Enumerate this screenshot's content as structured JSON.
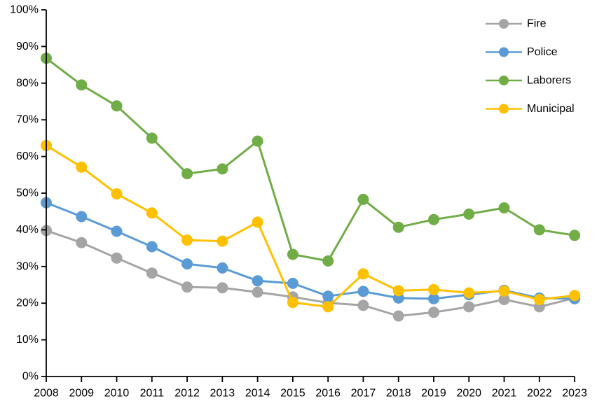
{
  "chart_data": {
    "type": "line",
    "title": "",
    "xlabel": "",
    "ylabel": "",
    "x": [
      2008,
      2009,
      2010,
      2011,
      2012,
      2013,
      2014,
      2015,
      2016,
      2017,
      2018,
      2019,
      2020,
      2021,
      2022,
      2023
    ],
    "xticks": [
      "2008",
      "2009",
      "2010",
      "2011",
      "2012",
      "2013",
      "2014",
      "2015",
      "2016",
      "2017",
      "2018",
      "2019",
      "2020",
      "2021",
      "2022",
      "2023"
    ],
    "yticks": [
      "0%",
      "10%",
      "20%",
      "30%",
      "40%",
      "50%",
      "60%",
      "70%",
      "80%",
      "90%",
      "100%"
    ],
    "ylim": [
      0,
      100
    ],
    "ytick_step": 10,
    "grid": false,
    "legend_position": "top-right",
    "background_color": "#FFFFFF",
    "axis_color": "#000000",
    "text_color": "#000000",
    "series": [
      {
        "name": "Fire",
        "color": "#A5A5A5",
        "values": [
          39.8,
          36.5,
          32.3,
          28.2,
          24.4,
          24.2,
          23.0,
          21.7,
          20.1,
          19.4,
          16.5,
          17.5,
          19.0,
          21.0,
          19.0,
          21.4
        ]
      },
      {
        "name": "Police",
        "color": "#5B9BD5",
        "values": [
          47.4,
          43.6,
          39.6,
          35.4,
          30.7,
          29.6,
          26.1,
          25.4,
          21.9,
          23.2,
          21.4,
          21.2,
          22.3,
          23.5,
          21.4,
          21.2
        ]
      },
      {
        "name": "Laborers",
        "color": "#70AD47",
        "values": [
          86.8,
          79.5,
          73.8,
          65.0,
          55.3,
          56.6,
          64.2,
          33.3,
          31.5,
          48.3,
          40.7,
          42.8,
          44.3,
          46.0,
          40.0,
          38.5
        ]
      },
      {
        "name": "Municipal",
        "color": "#FFC000",
        "values": [
          63.0,
          57.1,
          49.8,
          44.6,
          37.2,
          36.9,
          42.1,
          20.2,
          19.0,
          28.0,
          23.4,
          23.7,
          22.8,
          23.3,
          21.0,
          22.1
        ]
      }
    ]
  }
}
